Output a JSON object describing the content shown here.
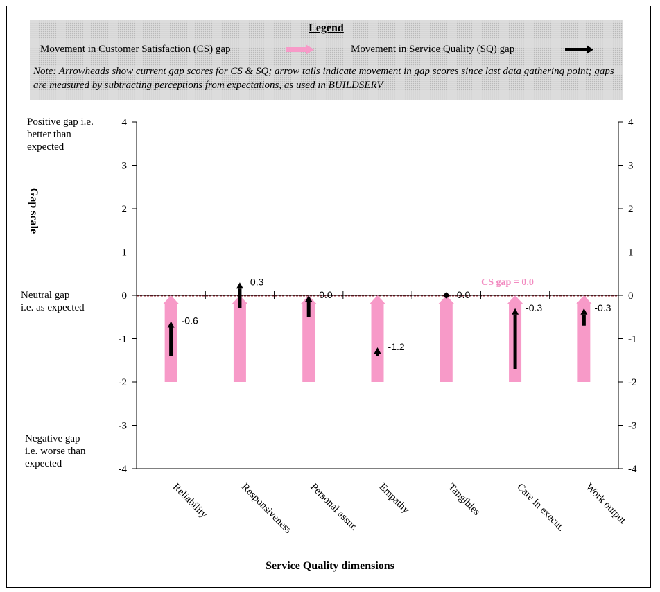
{
  "legend": {
    "title": "Legend",
    "cs_label": "Movement in Customer Satisfaction (CS) gap",
    "sq_label": "Movement in Service Quality (SQ) gap",
    "note": "Note: Arrowheads show current gap scores for CS & SQ; arrow tails indicate movement in gap scores since last data gathering point; gaps are measured by subtracting perceptions from expectations, as used in BUILDSERV"
  },
  "labels": {
    "positive_lines": [
      "Positive gap i.e.",
      "better than",
      "expected"
    ],
    "neutral_lines": [
      "Neutral gap",
      "i.e. as expected"
    ],
    "negative_lines": [
      "Negative gap",
      "i.e. worse than",
      "expected"
    ],
    "gap_scale": "Gap  scale",
    "cs_annotation": "CS gap =  0.0"
  },
  "colors": {
    "cs_arrow": "#f79ac8",
    "sq_arrow": "#000000",
    "cs_text": "#f28ac0",
    "zero_line": "#a0303c"
  },
  "chart_data": {
    "type": "arrow-range",
    "xlabel": "Service Quality dimensions",
    "ylim": [
      -4,
      4
    ],
    "yticks": [
      4,
      3,
      2,
      1,
      0,
      -1,
      -2,
      -3,
      -4
    ],
    "secondary_y_axis": true,
    "grid": false,
    "categories": [
      "Reliability",
      "Responsiveness",
      "Personal assur.",
      "Empathy",
      "Tangibles",
      "Care in execut.",
      "Work output"
    ],
    "series": [
      {
        "name": "Movement in Customer Satisfaction (CS) gap",
        "from": [
          -2,
          -2,
          -2,
          -2,
          -2,
          -2,
          -2
        ],
        "to": [
          0,
          0,
          0,
          0,
          0,
          0,
          0
        ]
      },
      {
        "name": "Movement in Service Quality (SQ) gap",
        "from": [
          -1.4,
          -0.3,
          -0.5,
          -1.4,
          0.0,
          -1.7,
          -0.7
        ],
        "to": [
          -0.6,
          0.3,
          0.0,
          -1.2,
          0.0,
          -0.3,
          -0.3
        ],
        "labels": [
          "-0.6",
          "0.3",
          "0.0",
          "-1.2",
          "0.0",
          "-0.3",
          "-0.3"
        ]
      }
    ]
  }
}
